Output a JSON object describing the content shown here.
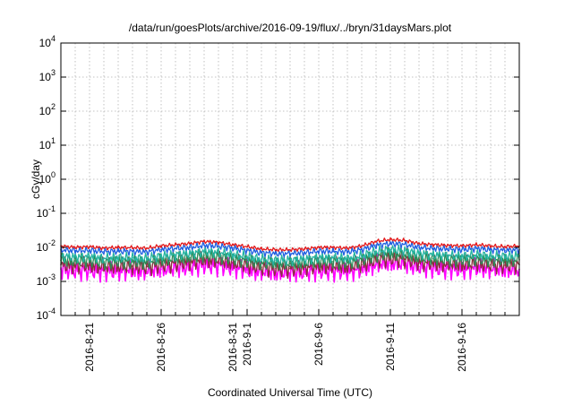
{
  "chart_data": {
    "type": "line",
    "title": "/data/run/goesPlots/archive/2016-09-19/flux/../bryn/31daysMars.plot",
    "xlabel": "Coordinated Universal Time (UTC)",
    "ylabel": "cGy/day",
    "y_scale": "log",
    "ylim": [
      0.0001,
      10000
    ],
    "y_ticks": [
      {
        "value": 0.0001,
        "base": "10",
        "exp": "-4"
      },
      {
        "value": 0.001,
        "base": "10",
        "exp": "-3"
      },
      {
        "value": 0.01,
        "base": "10",
        "exp": "-2"
      },
      {
        "value": 0.1,
        "base": "10",
        "exp": "-1"
      },
      {
        "value": 1,
        "base": "10",
        "exp": "0"
      },
      {
        "value": 10,
        "base": "10",
        "exp": "1"
      },
      {
        "value": 100,
        "base": "10",
        "exp": "2"
      },
      {
        "value": 1000,
        "base": "10",
        "exp": "3"
      },
      {
        "value": 10000,
        "base": "10",
        "exp": "4"
      }
    ],
    "xlim": [
      "2016-08-19",
      "2016-09-20"
    ],
    "x_ticks": [
      "2016-8-21",
      "2016-8-26",
      "2016-8-31",
      "2016-9-1",
      "2016-9-6",
      "2016-9-11",
      "2016-9-16"
    ],
    "grid": true,
    "legend": false,
    "x": [
      "2016-08-19",
      "2016-08-20",
      "2016-08-21",
      "2016-08-22",
      "2016-08-23",
      "2016-08-24",
      "2016-08-25",
      "2016-08-26",
      "2016-08-27",
      "2016-08-28",
      "2016-08-29",
      "2016-08-30",
      "2016-08-31",
      "2016-09-01",
      "2016-09-02",
      "2016-09-03",
      "2016-09-04",
      "2016-09-05",
      "2016-09-06",
      "2016-09-07",
      "2016-09-08",
      "2016-09-09",
      "2016-09-10",
      "2016-09-11",
      "2016-09-12",
      "2016-09-13",
      "2016-09-14",
      "2016-09-15",
      "2016-09-16",
      "2016-09-17",
      "2016-09-18",
      "2016-09-19",
      "2016-09-20"
    ],
    "series": [
      {
        "color": "#e31a1c",
        "values": [
          0.011,
          0.01,
          0.0105,
          0.0095,
          0.01,
          0.0098,
          0.0095,
          0.011,
          0.012,
          0.013,
          0.015,
          0.014,
          0.012,
          0.0105,
          0.009,
          0.0085,
          0.0085,
          0.009,
          0.01,
          0.01,
          0.0095,
          0.011,
          0.015,
          0.017,
          0.016,
          0.013,
          0.012,
          0.0115,
          0.011,
          0.012,
          0.011,
          0.0105,
          0.011
        ]
      },
      {
        "color": "#1f5fe0",
        "values": [
          0.0085,
          0.008,
          0.0082,
          0.0075,
          0.0078,
          0.0076,
          0.0074,
          0.0086,
          0.0093,
          0.01,
          0.0115,
          0.011,
          0.0095,
          0.0082,
          0.007,
          0.0066,
          0.0066,
          0.007,
          0.0077,
          0.0077,
          0.0074,
          0.0086,
          0.0115,
          0.013,
          0.0123,
          0.01,
          0.0093,
          0.009,
          0.0086,
          0.0093,
          0.0086,
          0.0082,
          0.0086
        ]
      },
      {
        "color": "#23b3a0",
        "values": [
          0.0055,
          0.0052,
          0.0054,
          0.0048,
          0.005,
          0.0049,
          0.0047,
          0.0056,
          0.006,
          0.0066,
          0.0075,
          0.0071,
          0.0062,
          0.0053,
          0.0045,
          0.0042,
          0.0042,
          0.0045,
          0.005,
          0.005,
          0.0047,
          0.0056,
          0.0075,
          0.0085,
          0.008,
          0.0066,
          0.006,
          0.0058,
          0.0056,
          0.006,
          0.0056,
          0.0054,
          0.0056
        ]
      },
      {
        "color": "#2e8b57",
        "values": [
          0.0042,
          0.004,
          0.0041,
          0.0037,
          0.0039,
          0.0038,
          0.0036,
          0.0043,
          0.0046,
          0.005,
          0.0058,
          0.0055,
          0.0047,
          0.0041,
          0.0035,
          0.0033,
          0.0033,
          0.0035,
          0.0039,
          0.0039,
          0.0036,
          0.0043,
          0.0058,
          0.0065,
          0.0061,
          0.005,
          0.0046,
          0.0044,
          0.0043,
          0.0046,
          0.0043,
          0.0041,
          0.0043
        ]
      },
      {
        "color": "#8b2f3c",
        "values": [
          0.0031,
          0.0029,
          0.003,
          0.0027,
          0.0028,
          0.0028,
          0.0027,
          0.0031,
          0.0034,
          0.0037,
          0.0043,
          0.004,
          0.0035,
          0.003,
          0.0026,
          0.0024,
          0.0024,
          0.0026,
          0.0028,
          0.0028,
          0.0027,
          0.0031,
          0.0043,
          0.0048,
          0.0045,
          0.0037,
          0.0034,
          0.0032,
          0.0031,
          0.0034,
          0.0031,
          0.003,
          0.0031
        ]
      },
      {
        "color": "#ff00ff",
        "values": [
          0.0023,
          0.0021,
          0.0022,
          0.002,
          0.0021,
          0.002,
          0.002,
          0.0023,
          0.0025,
          0.0027,
          0.0031,
          0.003,
          0.0026,
          0.0022,
          0.0019,
          0.0018,
          0.0018,
          0.0019,
          0.0021,
          0.0021,
          0.002,
          0.0023,
          0.0031,
          0.0035,
          0.0033,
          0.0027,
          0.0025,
          0.0024,
          0.0023,
          0.0025,
          0.0023,
          0.0022,
          0.0023
        ]
      }
    ]
  }
}
